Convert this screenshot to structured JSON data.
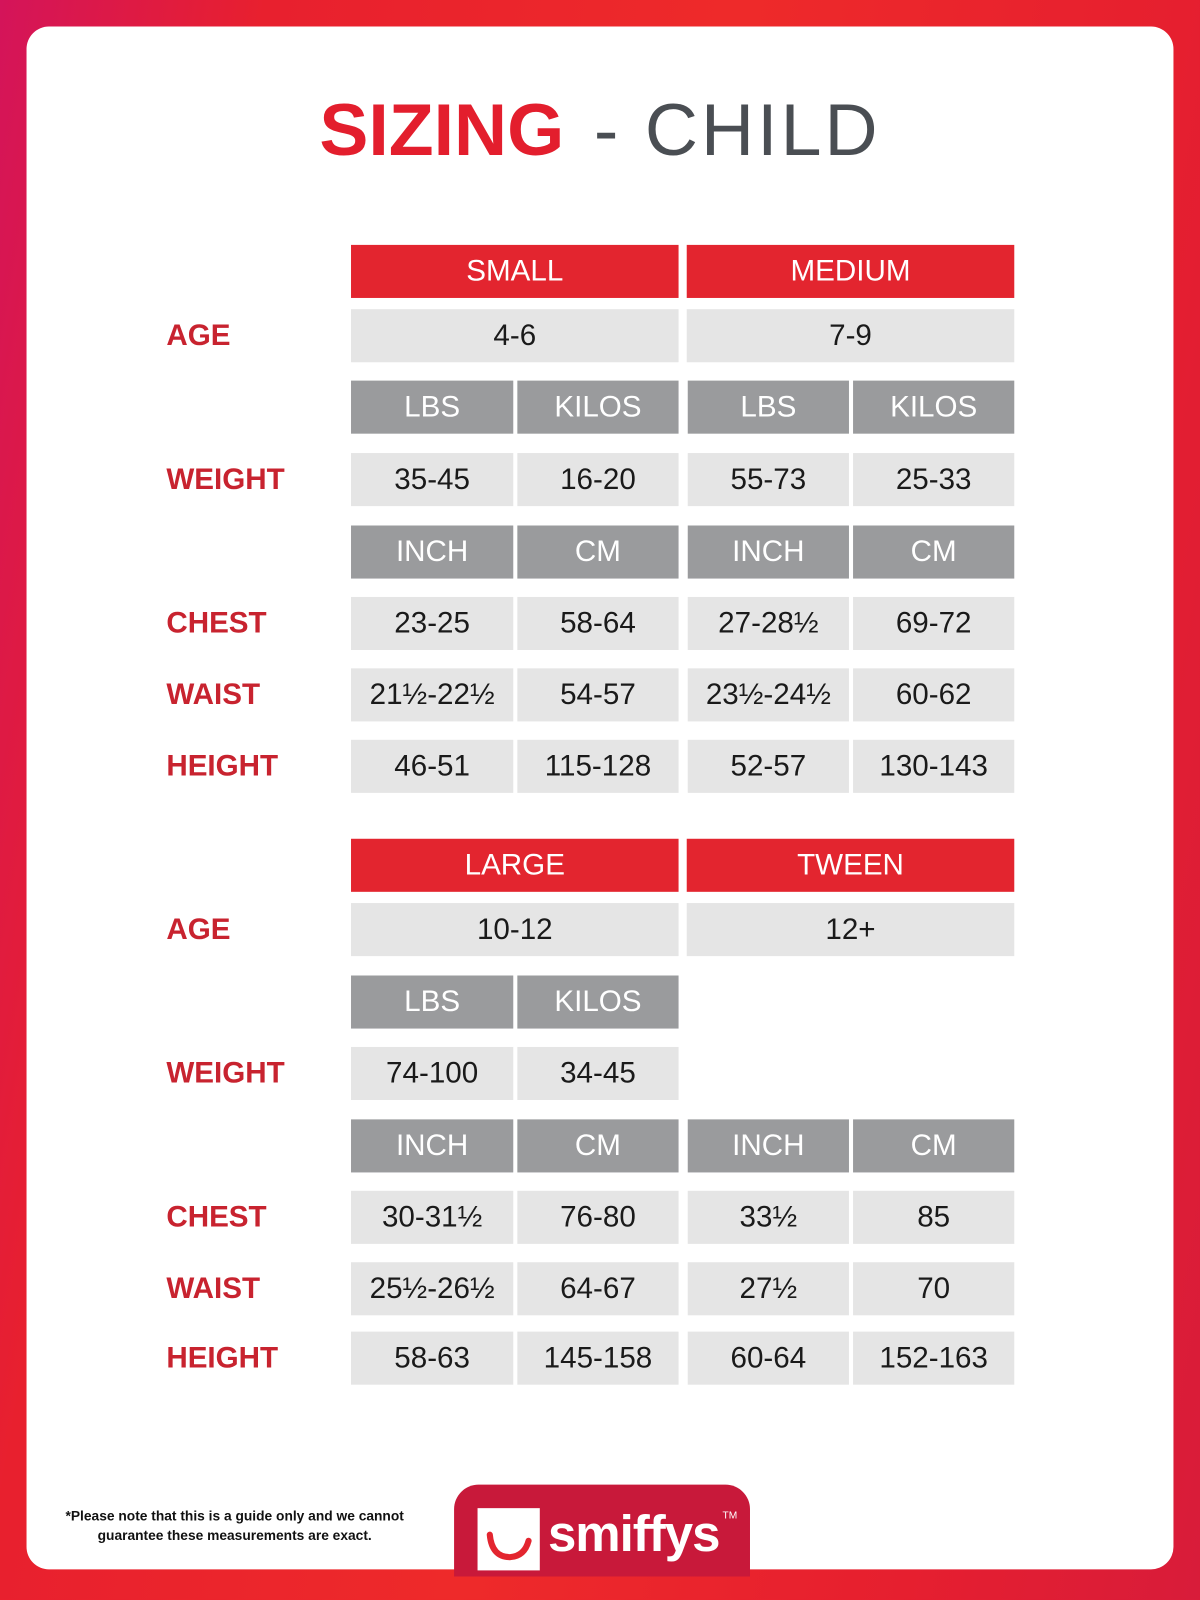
{
  "title": {
    "bold": "SIZING",
    "light": " - CHILD"
  },
  "colors": {
    "accent": "#e3252f",
    "unit_header": "#9a9b9d",
    "value_cell": "#e5e5e5",
    "label": "#c8232f",
    "title_gray": "#4a4e53"
  },
  "blocks": [
    {
      "sizes": [
        "SMALL",
        "MEDIUM"
      ],
      "age": [
        "4-6",
        "7-9"
      ],
      "weight_units": [
        "LBS",
        "KILOS",
        "LBS",
        "KILOS"
      ],
      "weight": [
        "35-45",
        "16-20",
        "55-73",
        "25-33"
      ],
      "measure_units": [
        "INCH",
        "CM",
        "INCH",
        "CM"
      ],
      "chest": [
        "23-25",
        "58-64",
        "27-28½",
        "69-72"
      ],
      "waist": [
        "21½-22½",
        "54-57",
        "23½-24½",
        "60-62"
      ],
      "height": [
        "46-51",
        "115-128",
        "52-57",
        "130-143"
      ]
    },
    {
      "sizes": [
        "LARGE",
        "TWEEN"
      ],
      "age": [
        "10-12",
        "12+"
      ],
      "weight_units": [
        "LBS",
        "KILOS"
      ],
      "weight": [
        "74-100",
        "34-45"
      ],
      "measure_units": [
        "INCH",
        "CM",
        "INCH",
        "CM"
      ],
      "chest": [
        "30-31½",
        "76-80",
        "33½",
        "85"
      ],
      "waist": [
        "25½-26½",
        "64-67",
        "27½",
        "70"
      ],
      "height": [
        "58-63",
        "145-158",
        "60-64",
        "152-163"
      ]
    }
  ],
  "labels": {
    "age": "AGE",
    "weight": "WEIGHT",
    "chest": "CHEST",
    "waist": "WAIST",
    "height": "HEIGHT"
  },
  "footer": {
    "note_line1": "*Please note that this is a guide only and we cannot",
    "note_line2": "guarantee these measurements are exact.",
    "logo": "smiffys",
    "tm": "TM"
  }
}
